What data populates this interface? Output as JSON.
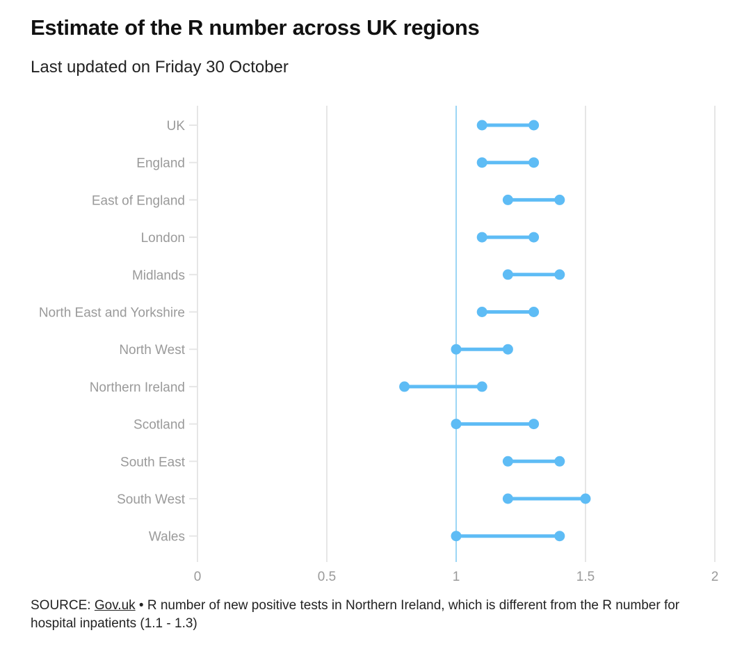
{
  "header": {
    "title": "Estimate of the R number across UK regions",
    "subtitle": "Last updated on Friday 30 October"
  },
  "footer": {
    "source_prefix": "SOURCE: ",
    "source_link": "Gov.uk",
    "note": " • R number of new positive tests in Northern Ireland, which is different from the R number for hospital inpatients (1.1 - 1.3)"
  },
  "chart_data": {
    "type": "dumbbell",
    "categories": [
      "UK",
      "England",
      "East of England",
      "London",
      "Midlands",
      "North East and Yorkshire",
      "North West",
      "Northern Ireland",
      "Scotland",
      "South East",
      "South West",
      "Wales"
    ],
    "series": [
      {
        "name": "",
        "values": [
          1.1,
          1.1,
          1.2,
          1.1,
          1.2,
          1.1,
          1.0,
          0.8,
          1.0,
          1.2,
          1.2,
          1.0
        ]
      },
      {
        "name": "",
        "values": [
          1.3,
          1.3,
          1.4,
          1.3,
          1.4,
          1.3,
          1.2,
          1.1,
          1.3,
          1.4,
          1.5,
          1.4
        ]
      }
    ],
    "x_ticks": [
      0,
      0.5,
      1,
      1.5,
      2
    ],
    "x_tick_labels": [
      "0",
      "0.5",
      "1",
      "1.5",
      "2"
    ],
    "xlim": [
      0,
      2
    ],
    "reference_line": 1,
    "grid": true,
    "colors": {
      "series": "#5ebcf5",
      "reference": "#7cc8f2",
      "grid": "#e6e6e6",
      "labels": "#9a9a9a"
    }
  }
}
